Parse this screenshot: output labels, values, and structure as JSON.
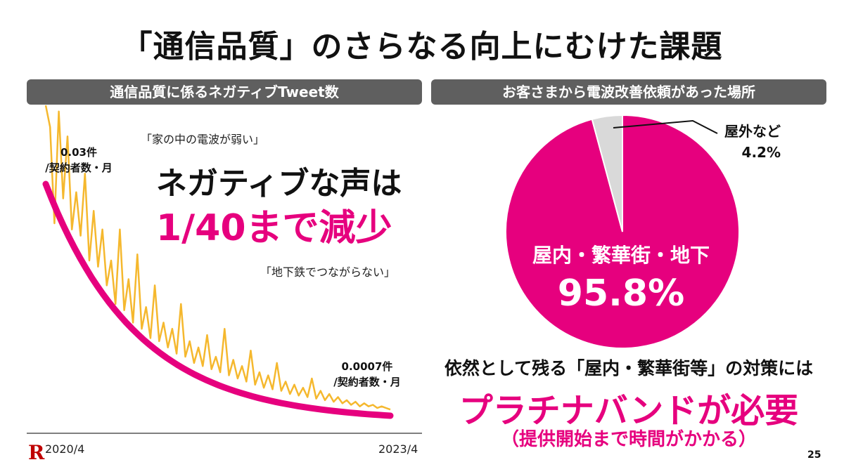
{
  "title": "「通信品質」のさらなる向上にむけた課題",
  "left_panel": {
    "header": "通信品質に係るネガティブTweet数",
    "quote1": "「家の中の電波が弱い」",
    "quote2": "「地下鉄でつながらない」",
    "start_value": "0.03件",
    "start_unit": "/契約者数・月",
    "end_value": "0.0007件",
    "end_unit": "/契約者数・月",
    "headline1": "ネガティブな声は",
    "headline2": "1/40まで減少",
    "x_start": "2020/4",
    "x_end": "2023/4"
  },
  "right_panel": {
    "header": "お客さまから電波改善依頼があった場所",
    "note_line1": "依然として残る「屋内・繁華街等」の対策には",
    "note_line2": "プラチナバンドが必要",
    "note_line3": "（提供開始まで時間がかかる）"
  },
  "page_number": "25",
  "colors": {
    "accent": "#e6007e",
    "tweet_line": "#f5b82e",
    "bar_gray": "#5f5f5f",
    "pie_other": "#d9d9d9"
  },
  "chart_data": [
    {
      "type": "line",
      "series": [
        {
          "values": [
            1.0,
            0.93,
            0.62,
            0.98,
            0.7,
            0.9,
            0.6,
            0.72,
            0.58,
            0.78,
            0.5,
            0.66,
            0.48,
            0.6,
            0.42,
            0.5,
            0.36,
            0.6,
            0.34,
            0.44,
            0.3,
            0.52,
            0.28,
            0.35,
            0.25,
            0.42,
            0.24,
            0.3,
            0.22,
            0.28,
            0.2,
            0.36,
            0.19,
            0.24,
            0.17,
            0.22,
            0.16,
            0.26,
            0.15,
            0.19,
            0.14,
            0.28,
            0.13,
            0.18,
            0.12,
            0.16,
            0.11,
            0.21,
            0.1,
            0.14,
            0.09,
            0.13,
            0.085,
            0.17,
            0.08,
            0.11,
            0.07,
            0.1,
            0.065,
            0.09,
            0.06,
            0.12,
            0.055,
            0.08,
            0.05,
            0.07,
            0.045,
            0.06,
            0.04,
            0.05,
            0.035,
            0.045,
            0.03,
            0.04,
            0.03,
            0.035,
            0.025,
            0.03,
            0.025,
            0.02
          ]
        },
        {
          "values": [
            0.03,
            0.0007
          ]
        }
      ]
    },
    {
      "type": "pie",
      "labels": [
        "屋内・繁華街・地下",
        "屋外など"
      ],
      "values": [
        95.8,
        4.2
      ],
      "value_labels": [
        "95.8%",
        "4.2%"
      ],
      "colors": [
        "#e6007e",
        "#d9d9d9"
      ]
    }
  ]
}
